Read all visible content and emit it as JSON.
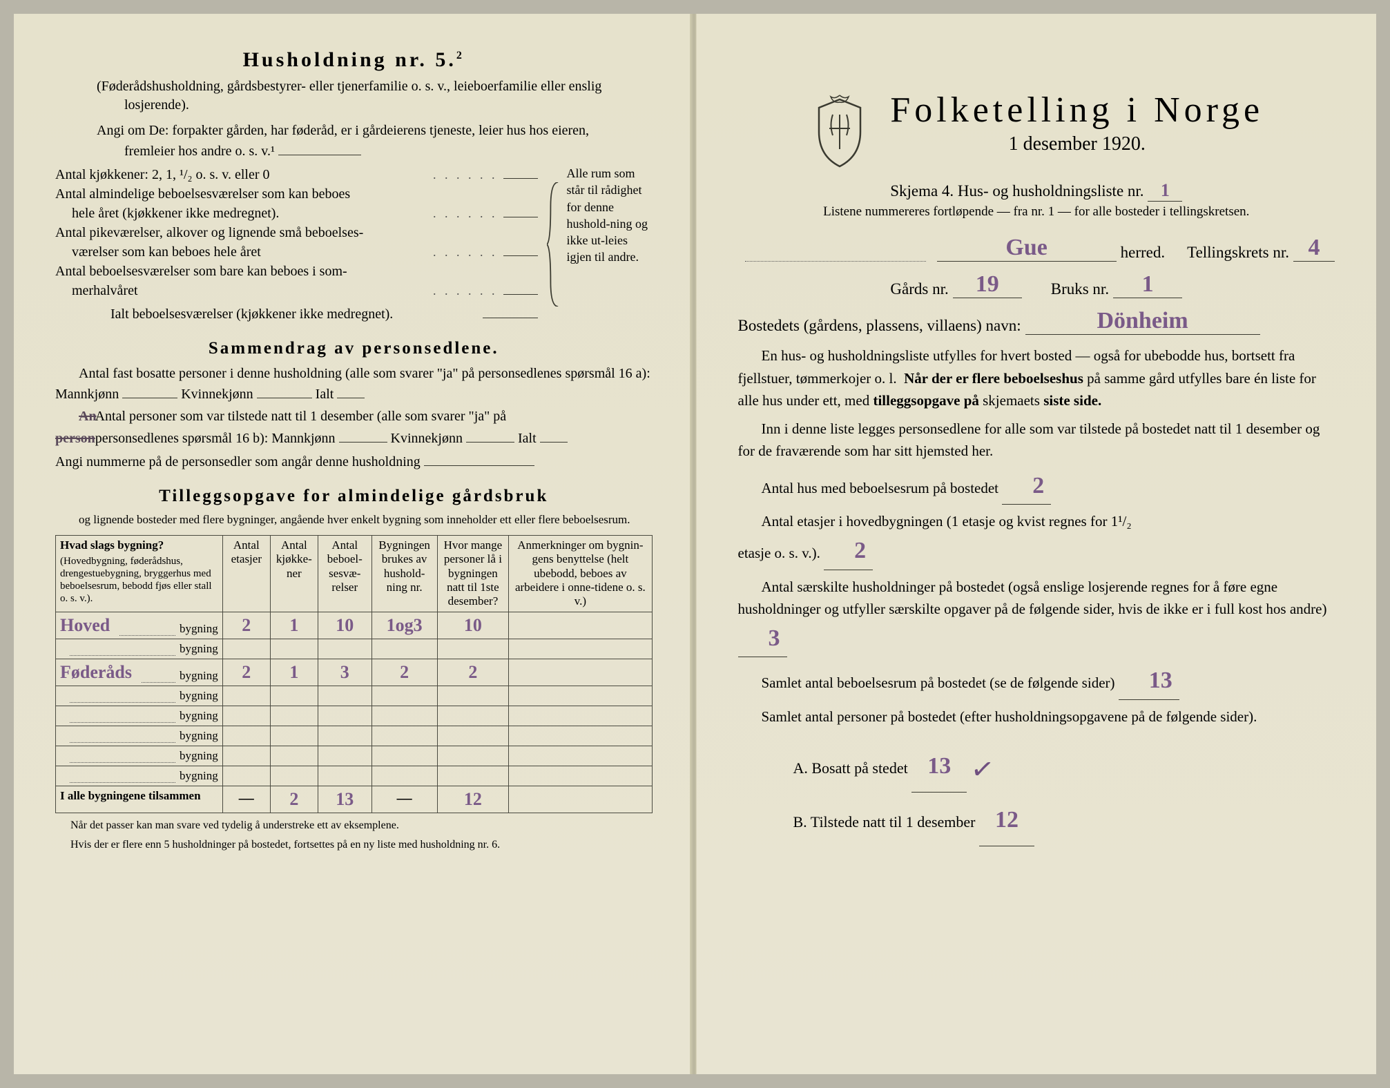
{
  "left": {
    "title": "Husholdning nr. 5.",
    "title_sup": "2",
    "note1": "(Føderådshusholdning, gårdsbestyrer- eller tjenerfamilie o. s. v., leieboerfamilie eller enslig losjerende).",
    "note2": "Angi om De: forpakter gården, har føderåd, er i gårdeierens tjeneste, leier hus hos eieren, fremleier hos andre o. s. v.¹",
    "rooms": {
      "l1": "Antal kjøkkener: 2, 1, ¹/₂ o. s. v. eller 0",
      "l2a": "Antal almindelige beboelsesværelser som kan beboes",
      "l2b": "hele året (kjøkkener ikke medregnet).",
      "l3a": "Antal pikeværelser, alkover og lignende små beboelses-",
      "l3b": "værelser som kan beboes hele året",
      "l4a": "Antal beboelsesværelser som bare kan beboes i som-",
      "l4b": "merhalvåret",
      "l5": "Ialt beboelsesværelser (kjøkkener ikke medregnet).",
      "sidenote": "Alle rum som står til rådighet for denne hushold-ning og ikke ut-leies igjen til andre."
    },
    "sammendrag_head": "Sammendrag av personsedlene.",
    "samm1": "Antal fast bosatte personer i denne husholdning (alle som svarer \"ja\" på personsedlenes spørsmål 16 a): Mannkjønn",
    "kvinne": "Kvinnekjønn",
    "ialt": "Ialt",
    "samm2a": "Antal personer som var tilstede natt til 1 desember (alle som svarer \"ja\" på",
    "samm2a_strike": "An",
    "samm2b": "personsedlenes spørsmål 16 b): Mannkjønn",
    "samm2b_strike": "person",
    "samm3": "Angi nummerne på de personsedler som angår denne husholdning",
    "tilleg_head": "Tilleggsopgave for almindelige gårdsbruk",
    "tilleg_sub": "og lignende bosteder med flere bygninger, angående hver enkelt bygning som inneholder ett eller flere beboelsesrum.",
    "ett_eller": "ett eller",
    "table": {
      "h1": "Hvad slags bygning?",
      "h1sub": "(Hovedbygning, føderådshus, drengestuebygning, bryggerhus med beboelsesrum, bebodd fjøs eller stall o. s. v.).",
      "h2": "Antal etasjer",
      "h3": "Antal kjøkke-ner",
      "h4": "Antal beboel-sesvæ-relser",
      "h5": "Bygningen brukes av hushold-ning nr.",
      "h6": "Hvor mange personer lå i bygningen natt til 1ste desember?",
      "h7": "Anmerkninger om bygnin-gens benyttelse (helt ubebodd, beboes av arbeidere i onne-tidene o. s. v.)",
      "bygning": "bygning",
      "rows": [
        {
          "name": "Hoved",
          "c2": "2",
          "c3": "1",
          "c4": "10",
          "c5": "1og3",
          "c6": "10",
          "c7": ""
        },
        {
          "name": "",
          "c2": "",
          "c3": "",
          "c4": "",
          "c5": "",
          "c6": "",
          "c7": ""
        },
        {
          "name": "Føderåds",
          "c2": "2",
          "c3": "1",
          "c4": "3",
          "c5": "2",
          "c6": "2",
          "c7": ""
        },
        {
          "name": "",
          "c2": "",
          "c3": "",
          "c4": "",
          "c5": "",
          "c6": "",
          "c7": ""
        },
        {
          "name": "",
          "c2": "",
          "c3": "",
          "c4": "",
          "c5": "",
          "c6": "",
          "c7": ""
        },
        {
          "name": "",
          "c2": "",
          "c3": "",
          "c4": "",
          "c5": "",
          "c6": "",
          "c7": ""
        },
        {
          "name": "",
          "c2": "",
          "c3": "",
          "c4": "",
          "c5": "",
          "c6": "",
          "c7": ""
        },
        {
          "name": "",
          "c2": "",
          "c3": "",
          "c4": "",
          "c5": "",
          "c6": "",
          "c7": ""
        }
      ],
      "total_label": "I alle bygningene tilsammen",
      "total": {
        "c2": "—",
        "c3": "2",
        "c4": "13",
        "c5": "—",
        "c6": "12",
        "c7": ""
      }
    },
    "footer1": "Når det passer kan man svare ved tydelig å understreke ett av eksemplene.",
    "footer2": "Hvis der er flere enn 5 husholdninger på bostedet, fortsettes på en ny liste med husholdning nr. 6."
  },
  "right": {
    "title": "Folketelling i Norge",
    "date": "1 desember 1920.",
    "skjema": "Skjema 4.  Hus- og husholdningsliste nr.",
    "skjema_val": "1",
    "listene": "Listene nummereres fortløpende — fra nr. 1 — for alle bosteder i tellingskretsen.",
    "herred_val": "Gue",
    "herred_label": "herred.",
    "tellingskrets": "Tellingskrets nr.",
    "tellingskrets_val": "4",
    "gards": "Gårds nr.",
    "gards_val": "19",
    "bruks": "Bruks nr.",
    "bruks_val": "1",
    "bosted": "Bostedets (gårdens, plassens, villaens) navn:",
    "bosted_val": "Dönheim",
    "p1": "En hus- og husholdningsliste utfylles for hvert bosted — også for ubebodde hus, bortsett fra fjellstuer, tømmerkojer o. l.  Når der er flere beboelseshus på samme gård utfylles bare én liste for alle hus under ett, med tilleggsopgave på skjemaets siste side.",
    "p1_bold1": "Når der er flere beboelseshus",
    "p1_bold2": "tilleggsopgave på",
    "p1_bold3": "siste side.",
    "p2": "Inn i denne liste legges personsedlene for alle som var tilstede på bostedet natt til 1 desember og for de fraværende som har sitt hjemsted her.",
    "q1": "Antal hus med beboelsesrum på bostedet",
    "q1_val": "2",
    "q2a": "Antal etasjer i hovedbygningen (1 etasje og kvist regnes for 1¹/₂",
    "q2b": "etasje o. s. v.).",
    "q2_val": "2",
    "q3": "Antal særskilte husholdninger på bostedet (også enslige losjerende regnes for å føre egne husholdninger og utfyller særskilte opgaver på de følgende sider, hvis de ikke er i full kost hos andre)",
    "q3_val": "3",
    "q4": "Samlet antal beboelsesrum på bostedet (se de følgende sider)",
    "q4_val": "13",
    "q5": "Samlet antal personer på bostedet (efter husholdningsopgavene på de følgende sider).",
    "a_label": "A.  Bosatt på stedet",
    "a_val": "13",
    "b_label": "B.  Tilstede natt til 1 desember",
    "b_val": "12"
  },
  "colors": {
    "paper": "#e8e4d0",
    "ink": "#2a2a24",
    "handwriting": "#7a5a88",
    "rule": "#3a3a30"
  }
}
